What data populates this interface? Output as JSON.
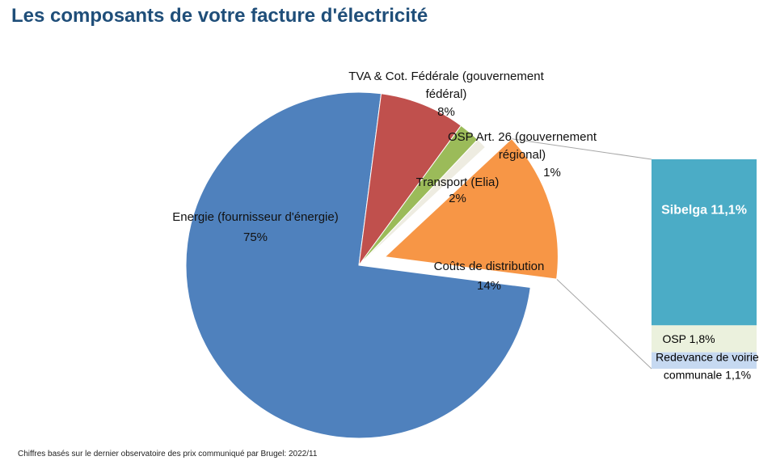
{
  "title": "Les composants de votre facture d'électricité",
  "footnote": "Chiffres basés sur le dernier observatoire des prix communiqué par Brugel: 2022/11",
  "chart_data": [
    {
      "type": "pie",
      "exploded": "Coûts de distribution",
      "slices": [
        {
          "label": [
            "Coûts de distribution"
          ],
          "pct_label": "14%",
          "value": 14,
          "color": "#f79646"
        },
        {
          "label": [
            "Energie (fournisseur d'énergie)"
          ],
          "pct_label": "75%",
          "value": 75,
          "color": "#4f81bd"
        },
        {
          "label": [
            "TVA & Cot. Fédérale (gouvernement",
            "fédéral)"
          ],
          "pct_label": "8%",
          "value": 8,
          "color": "#c0504d"
        },
        {
          "label": [
            "Transport (Elia)"
          ],
          "pct_label": "2%",
          "value": 2,
          "color": "#9bbb59"
        },
        {
          "label": [
            "OSP Art. 26 (gouvernement",
            "régional)"
          ],
          "pct_label": "1%",
          "value": 1,
          "color": "#eeece1"
        }
      ]
    },
    {
      "type": "bar",
      "stacked": true,
      "breakdown_of": "Coûts de distribution",
      "segments": [
        {
          "label": "Sibelga 11,1%",
          "value": 11.1,
          "color": "#4bacc6",
          "label_color": "#ffffff"
        },
        {
          "label": "OSP 1,8%",
          "value": 1.8,
          "color": "#ebf1dd",
          "label_color": "#000000"
        },
        {
          "label": "Redevance de voirie communale 1,1%",
          "value": 1.1,
          "color": "#c6d9f1",
          "label_color": "#000000"
        }
      ]
    }
  ]
}
